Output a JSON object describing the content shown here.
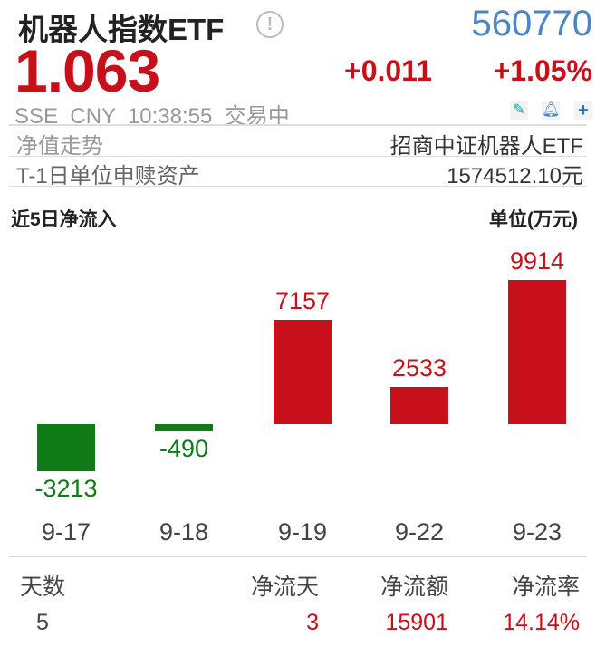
{
  "header": {
    "title": "机器人指数ETF",
    "info_icon": "!",
    "code": "560770",
    "price": "1.063",
    "change": "+0.011",
    "change_pct": "+1.05%",
    "status": "SSE  CNY  10:38:55  交易中",
    "icons": [
      "pencil-icon",
      "bell-icon",
      "plus-icon"
    ]
  },
  "rows": [
    {
      "label": "净值走势",
      "value": "招商中证机器人ETF"
    },
    {
      "label": "T-1日单位申赎资产",
      "value": "1574512.10元"
    }
  ],
  "colors": {
    "up": "#c8101b",
    "down": "#0f7a16",
    "code": "#4a86c5"
  },
  "chart_data": {
    "type": "bar",
    "title": "近5日净流入",
    "ylabel": "单位(万元)",
    "categories": [
      "9-17",
      "9-18",
      "9-19",
      "9-22",
      "9-23"
    ],
    "values": [
      -3213,
      -490,
      7157,
      2533,
      9914
    ],
    "labels": [
      "-3213",
      "-490",
      "7157",
      "2533",
      "9914"
    ]
  },
  "summary": {
    "headers": [
      "天数",
      "净流天",
      "净流额",
      "净流率"
    ],
    "values": [
      "5",
      "3",
      "15901",
      "14.14%"
    ]
  }
}
